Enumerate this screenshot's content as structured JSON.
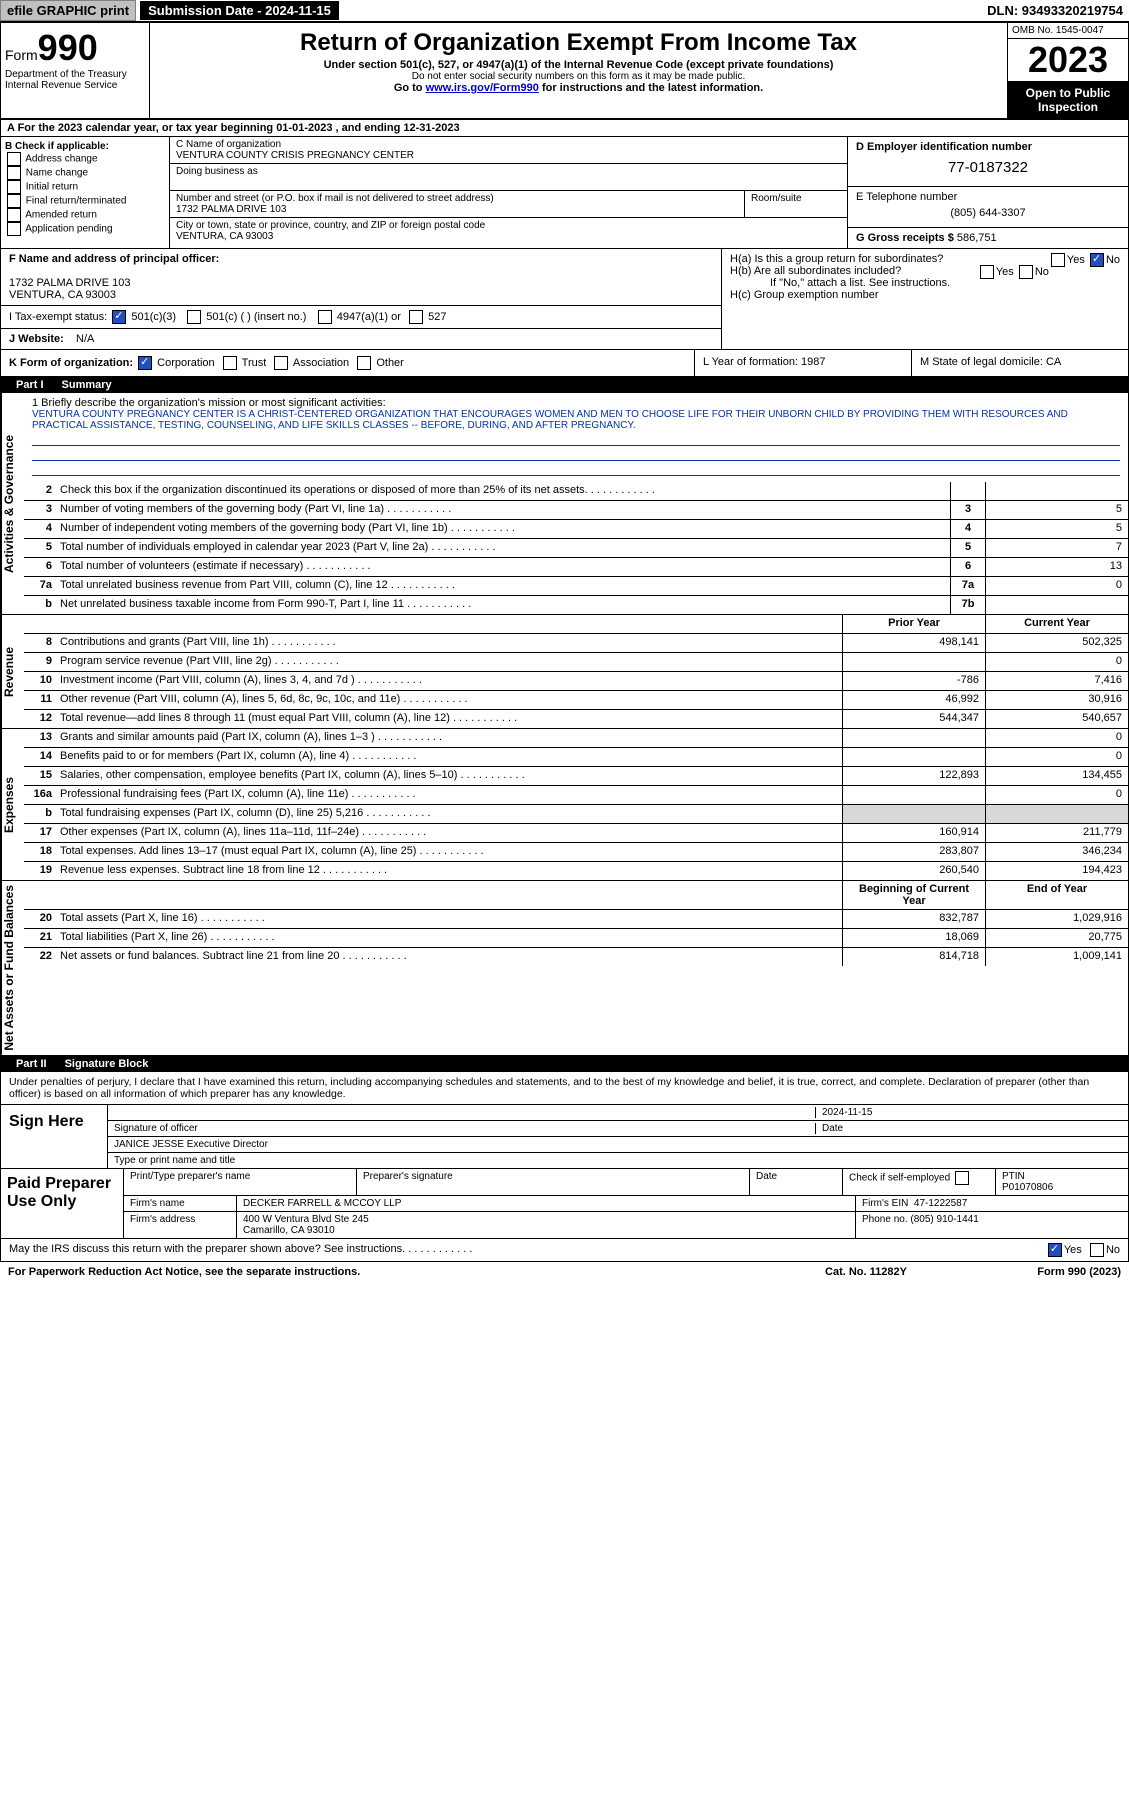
{
  "topbar": {
    "efile": "efile GRAPHIC print",
    "subdate_label": "Submission Date - 2024-11-15",
    "dln": "DLN: 93493320219754"
  },
  "header": {
    "form_prefix": "Form",
    "form_num": "990",
    "dept": "Department of the Treasury\nInternal Revenue Service",
    "title": "Return of Organization Exempt From Income Tax",
    "sub1": "Under section 501(c), 527, or 4947(a)(1) of the Internal Revenue Code (except private foundations)",
    "sub2": "Do not enter social security numbers on this form as it may be made public.",
    "sub3_pre": "Go to ",
    "sub3_link": "www.irs.gov/Form990",
    "sub3_post": " for instructions and the latest information.",
    "omb": "OMB No. 1545-0047",
    "year": "2023",
    "open": "Open to Public Inspection"
  },
  "row_a": "A For the 2023 calendar year, or tax year beginning 01-01-2023   , and ending 12-31-2023",
  "box_b": {
    "label": "B Check if applicable:",
    "items": [
      "Address change",
      "Name change",
      "Initial return",
      "Final return/terminated",
      "Amended return",
      "Application pending"
    ]
  },
  "box_c": {
    "label_name": "C Name of organization",
    "name": "VENTURA COUNTY CRISIS PREGNANCY CENTER",
    "dba_label": "Doing business as",
    "addr_label": "Number and street (or P.O. box if mail is not delivered to street address)",
    "room_label": "Room/suite",
    "addr": "1732 PALMA DRIVE 103",
    "city_label": "City or town, state or province, country, and ZIP or foreign postal code",
    "city": "VENTURA, CA  93003"
  },
  "box_d": {
    "label": "D Employer identification number",
    "ein": "77-0187322",
    "phone_label": "E Telephone number",
    "phone": "(805) 644-3307",
    "gross_label": "G Gross receipts $",
    "gross": "586,751"
  },
  "box_f": {
    "label": "F Name and address of principal officer:",
    "addr1": "1732 PALMA DRIVE 103",
    "addr2": "VENTURA, CA  93003"
  },
  "box_i": {
    "label": "I   Tax-exempt status:",
    "opt1": "501(c)(3)",
    "opt2": "501(c) (  ) (insert no.)",
    "opt3": "4947(a)(1) or",
    "opt4": "527"
  },
  "box_j": {
    "label": "J   Website:",
    "val": "N/A"
  },
  "box_h": {
    "ha": "H(a)  Is this a group return for subordinates?",
    "hb": "H(b)  Are all subordinates included?",
    "hb_note": "If \"No,\" attach a list. See instructions.",
    "hc": "H(c)  Group exemption number",
    "yes": "Yes",
    "no": "No"
  },
  "row_k": {
    "k": "K Form of organization:",
    "opts": [
      "Corporation",
      "Trust",
      "Association",
      "Other"
    ],
    "l": "L Year of formation: 1987",
    "m": "M State of legal domicile: CA"
  },
  "part1": {
    "label": "Part I",
    "title": "Summary"
  },
  "mission": {
    "q": "1   Briefly describe the organization's mission or most significant activities:",
    "text": "VENTURA COUNTY PREGNANCY CENTER IS A CHRIST-CENTERED ORGANIZATION THAT ENCOURAGES WOMEN AND MEN TO CHOOSE LIFE FOR THEIR UNBORN CHILD BY PROVIDING THEM WITH RESOURCES AND PRACTICAL ASSISTANCE, TESTING, COUNSELING, AND LIFE SKILLS CLASSES -- BEFORE, DURING, AND AFTER PREGNANCY."
  },
  "vtabs": {
    "gov": "Activities & Governance",
    "rev": "Revenue",
    "exp": "Expenses",
    "net": "Net Assets or Fund Balances"
  },
  "lines_gov": [
    {
      "n": "2",
      "d": "Check this box      if the organization discontinued its operations or disposed of more than 25% of its net assets.",
      "box": "",
      "v": ""
    },
    {
      "n": "3",
      "d": "Number of voting members of the governing body (Part VI, line 1a)",
      "box": "3",
      "v": "5"
    },
    {
      "n": "4",
      "d": "Number of independent voting members of the governing body (Part VI, line 1b)",
      "box": "4",
      "v": "5"
    },
    {
      "n": "5",
      "d": "Total number of individuals employed in calendar year 2023 (Part V, line 2a)",
      "box": "5",
      "v": "7"
    },
    {
      "n": "6",
      "d": "Total number of volunteers (estimate if necessary)",
      "box": "6",
      "v": "13"
    },
    {
      "n": "7a",
      "d": "Total unrelated business revenue from Part VIII, column (C), line 12",
      "box": "7a",
      "v": "0"
    },
    {
      "n": "b",
      "d": "Net unrelated business taxable income from Form 990-T, Part I, line 11",
      "box": "7b",
      "v": ""
    }
  ],
  "hdr": {
    "prior": "Prior Year",
    "current": "Current Year"
  },
  "lines_rev": [
    {
      "n": "8",
      "d": "Contributions and grants (Part VIII, line 1h)",
      "p": "498,141",
      "c": "502,325"
    },
    {
      "n": "9",
      "d": "Program service revenue (Part VIII, line 2g)",
      "p": "",
      "c": "0"
    },
    {
      "n": "10",
      "d": "Investment income (Part VIII, column (A), lines 3, 4, and 7d )",
      "p": "-786",
      "c": "7,416"
    },
    {
      "n": "11",
      "d": "Other revenue (Part VIII, column (A), lines 5, 6d, 8c, 9c, 10c, and 11e)",
      "p": "46,992",
      "c": "30,916"
    },
    {
      "n": "12",
      "d": "Total revenue—add lines 8 through 11 (must equal Part VIII, column (A), line 12)",
      "p": "544,347",
      "c": "540,657"
    }
  ],
  "lines_exp": [
    {
      "n": "13",
      "d": "Grants and similar amounts paid (Part IX, column (A), lines 1–3 )",
      "p": "",
      "c": "0"
    },
    {
      "n": "14",
      "d": "Benefits paid to or for members (Part IX, column (A), line 4)",
      "p": "",
      "c": "0"
    },
    {
      "n": "15",
      "d": "Salaries, other compensation, employee benefits (Part IX, column (A), lines 5–10)",
      "p": "122,893",
      "c": "134,455"
    },
    {
      "n": "16a",
      "d": "Professional fundraising fees (Part IX, column (A), line 11e)",
      "p": "",
      "c": "0"
    },
    {
      "n": "b",
      "d": "Total fundraising expenses (Part IX, column (D), line 25) 5,216",
      "p": "shade",
      "c": "shade"
    },
    {
      "n": "17",
      "d": "Other expenses (Part IX, column (A), lines 11a–11d, 11f–24e)",
      "p": "160,914",
      "c": "211,779"
    },
    {
      "n": "18",
      "d": "Total expenses. Add lines 13–17 (must equal Part IX, column (A), line 25)",
      "p": "283,807",
      "c": "346,234"
    },
    {
      "n": "19",
      "d": "Revenue less expenses. Subtract line 18 from line 12",
      "p": "260,540",
      "c": "194,423"
    }
  ],
  "hdr_net": {
    "prior": "Beginning of Current Year",
    "current": "End of Year"
  },
  "lines_net": [
    {
      "n": "20",
      "d": "Total assets (Part X, line 16)",
      "p": "832,787",
      "c": "1,029,916"
    },
    {
      "n": "21",
      "d": "Total liabilities (Part X, line 26)",
      "p": "18,069",
      "c": "20,775"
    },
    {
      "n": "22",
      "d": "Net assets or fund balances. Subtract line 21 from line 20",
      "p": "814,718",
      "c": "1,009,141"
    }
  ],
  "part2": {
    "label": "Part II",
    "title": "Signature Block"
  },
  "perjury": "Under penalties of perjury, I declare that I have examined this return, including accompanying schedules and statements, and to the best of my knowledge and belief, it is true, correct, and complete. Declaration of preparer (other than officer) is based on all information of which preparer has any knowledge.",
  "sign": {
    "label": "Sign Here",
    "sig_label": "Signature of officer",
    "date_label": "Date",
    "date_val": "2024-11-15",
    "name": "JANICE JESSE  Executive Director",
    "name_label": "Type or print name and title"
  },
  "prep": {
    "label": "Paid Preparer Use Only",
    "h1": "Print/Type preparer's name",
    "h2": "Preparer's signature",
    "h3": "Date",
    "h4": "Check        if self-employed",
    "h5_label": "PTIN",
    "h5": "P01070806",
    "firm_label": "Firm's name",
    "firm": "DECKER FARRELL & MCCOY LLP",
    "ein_label": "Firm's EIN",
    "ein": "47-1222587",
    "addr_label": "Firm's address",
    "addr1": "400 W Ventura Blvd Ste 245",
    "addr2": "Camarillo, CA  93010",
    "phone_label": "Phone no.",
    "phone": "(805) 910-1441"
  },
  "discuss": "May the IRS discuss this return with the preparer shown above? See instructions.",
  "footer": {
    "pra": "For Paperwork Reduction Act Notice, see the separate instructions.",
    "cat": "Cat. No. 11282Y",
    "form": "Form 990 (2023)"
  }
}
